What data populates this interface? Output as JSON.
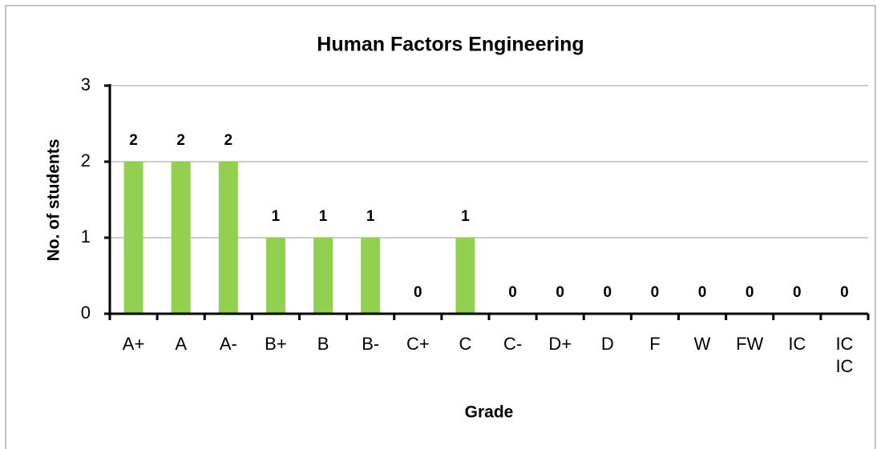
{
  "chart_data": {
    "type": "bar",
    "title": "Human Factors Engineering",
    "x_label": "Grade",
    "y_label": "No. of students",
    "categories": [
      "A+",
      "A",
      "A-",
      "B+",
      "B",
      "B-",
      "C+",
      "C",
      "C-",
      "D+",
      "D",
      "F",
      "W",
      "FW",
      "IC",
      "IC IC"
    ],
    "values": [
      2,
      2,
      2,
      1,
      1,
      1,
      0,
      1,
      0,
      0,
      0,
      0,
      0,
      0,
      0,
      0
    ],
    "color": "#92d050",
    "ylim": [
      0,
      3
    ],
    "yticks": [
      0,
      1,
      2,
      3
    ],
    "grid": true
  }
}
